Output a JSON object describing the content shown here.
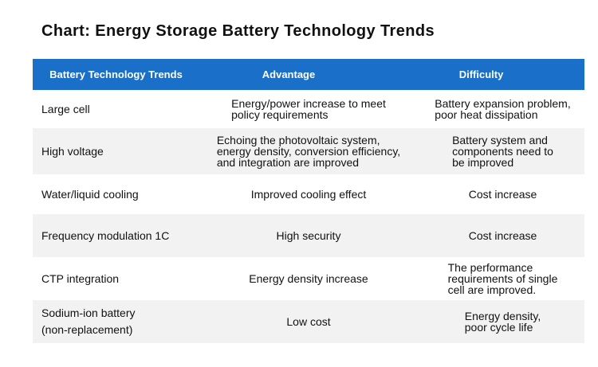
{
  "title": "Chart: Energy Storage Battery Technology Trends",
  "table": {
    "headers": [
      "Battery Technology Trends",
      "Advantage",
      "Difficulty"
    ],
    "rows": [
      {
        "trend": "Large cell",
        "advantage": "Energy/power increase to meet\npolicy requirements",
        "difficulty": "Battery expansion problem,\npoor heat dissipation"
      },
      {
        "trend": "High voltage",
        "advantage": "Echoing the photovoltaic system,\nenergy density, conversion efficiency,\nand integration are improved",
        "difficulty": "Battery system and\ncomponents need to\nbe improved"
      },
      {
        "trend": "Water/liquid cooling",
        "advantage": "Improved cooling effect",
        "difficulty": "Cost increase"
      },
      {
        "trend": "Frequency modulation 1C",
        "advantage": "High security",
        "difficulty": "Cost increase"
      },
      {
        "trend": "CTP integration",
        "advantage": "Energy density increase",
        "difficulty": "The performance\nrequirements of single\ncell are improved."
      },
      {
        "trend": "Sodium-ion battery\n(non-replacement)",
        "advantage": "Low cost",
        "difficulty": "Energy density,\npoor cycle life"
      }
    ]
  },
  "colors": {
    "header_bg": "#1a6fc9",
    "header_text": "#ffffff",
    "row_shade": "#f2f2f2"
  }
}
